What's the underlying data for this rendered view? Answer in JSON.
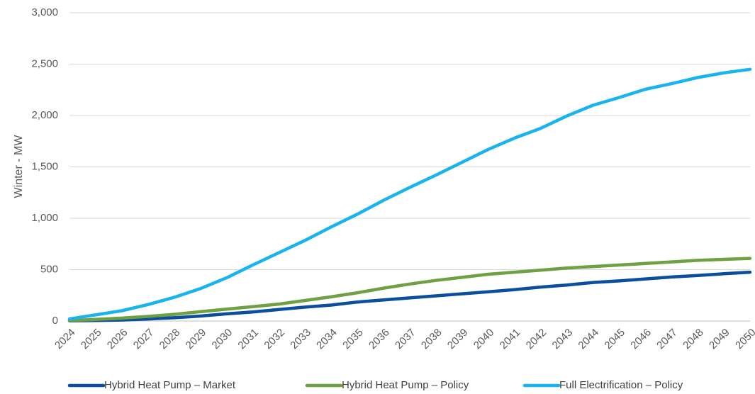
{
  "chart_data": {
    "type": "line",
    "title": "",
    "xlabel": "",
    "ylabel": "Winter - MW",
    "ylim": [
      0,
      3000
    ],
    "yticks": [
      "0",
      "500",
      "1,000",
      "1,500",
      "2,000",
      "2,500",
      "3,000"
    ],
    "ytick_values": [
      0,
      500,
      1000,
      1500,
      2000,
      2500,
      3000
    ],
    "grid": "horizontal",
    "legend_position": "bottom",
    "x": [
      "2024",
      "2025",
      "2026",
      "2027",
      "2028",
      "2029",
      "2030",
      "2031",
      "2032",
      "2033",
      "2034",
      "2035",
      "2036",
      "2037",
      "2038",
      "2039",
      "2040",
      "2041",
      "2042",
      "2043",
      "2044",
      "2045",
      "2046",
      "2047",
      "2048",
      "2049",
      "2050"
    ],
    "series": [
      {
        "name": "Hybrid Heat Pump – Market",
        "color": "#0B4F9C",
        "values": [
          2,
          5,
          10,
          20,
          32,
          48,
          70,
          88,
          112,
          135,
          155,
          185,
          205,
          225,
          245,
          265,
          285,
          305,
          330,
          350,
          375,
          390,
          410,
          428,
          443,
          460,
          475
        ]
      },
      {
        "name": "Hybrid Heat Pump – Policy",
        "color": "#6FA043",
        "values": [
          5,
          15,
          28,
          45,
          65,
          90,
          115,
          140,
          165,
          200,
          235,
          275,
          320,
          360,
          395,
          425,
          455,
          475,
          495,
          515,
          530,
          545,
          560,
          575,
          590,
          600,
          610
        ]
      },
      {
        "name": "Full Electrification – Policy",
        "color": "#19B4EB",
        "values": [
          20,
          60,
          100,
          160,
          230,
          315,
          420,
          545,
          665,
          785,
          915,
          1040,
          1175,
          1300,
          1420,
          1545,
          1670,
          1780,
          1875,
          1995,
          2100,
          2175,
          2255,
          2310,
          2370,
          2415,
          2450
        ]
      }
    ]
  }
}
